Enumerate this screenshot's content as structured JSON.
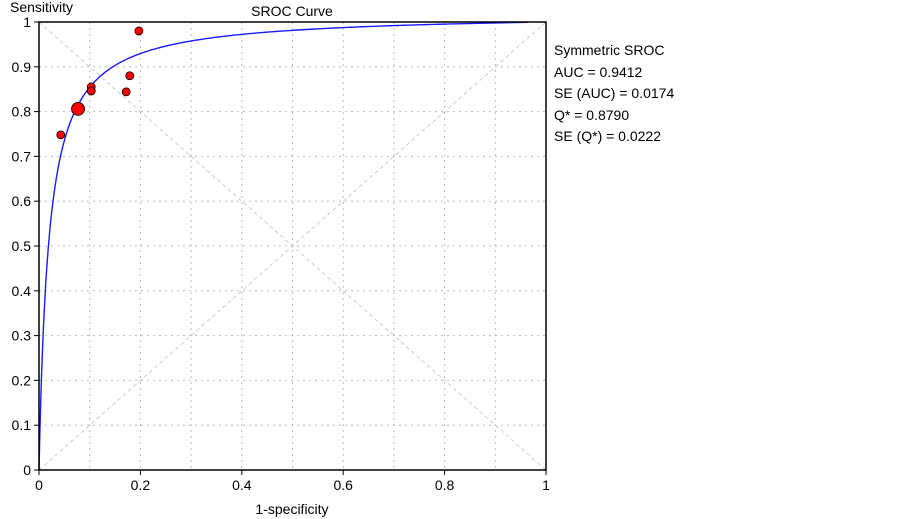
{
  "chart_data": {
    "type": "scatter",
    "title": "SROC Curve",
    "xlabel": "1-specificity",
    "ylabel": "Sensitivity",
    "xlim": [
      0,
      1
    ],
    "ylim": [
      0,
      1
    ],
    "xticks": [
      "0",
      "0.2",
      "0.4",
      "0.6",
      "0.8",
      "1"
    ],
    "yticks": [
      "0",
      "0.1",
      "0.2",
      "0.3",
      "0.4",
      "0.5",
      "0.6",
      "0.7",
      "0.8",
      "0.9",
      "1"
    ],
    "grid": true,
    "points": [
      {
        "x": 0.197,
        "y": 0.98,
        "weight": 1
      },
      {
        "x": 0.179,
        "y": 0.88,
        "weight": 1
      },
      {
        "x": 0.172,
        "y": 0.844,
        "weight": 1
      },
      {
        "x": 0.103,
        "y": 0.855,
        "weight": 1
      },
      {
        "x": 0.103,
        "y": 0.846,
        "weight": 1
      },
      {
        "x": 0.077,
        "y": 0.806,
        "weight": 2
      },
      {
        "x": 0.043,
        "y": 0.748,
        "weight": 1
      }
    ],
    "curve": {
      "name": "Symmetric SROC",
      "q_star": 0.879
    },
    "stats": {
      "title": "Symmetric SROC",
      "lines": [
        "AUC = 0.9412",
        "SE (AUC) = 0.0174",
        "Q* = 0.8790",
        "SE (Q*) = 0.0222"
      ]
    },
    "colors": {
      "curve": "#1a1aff",
      "point": "#ff0000",
      "grid": "#bbbbbb"
    }
  }
}
